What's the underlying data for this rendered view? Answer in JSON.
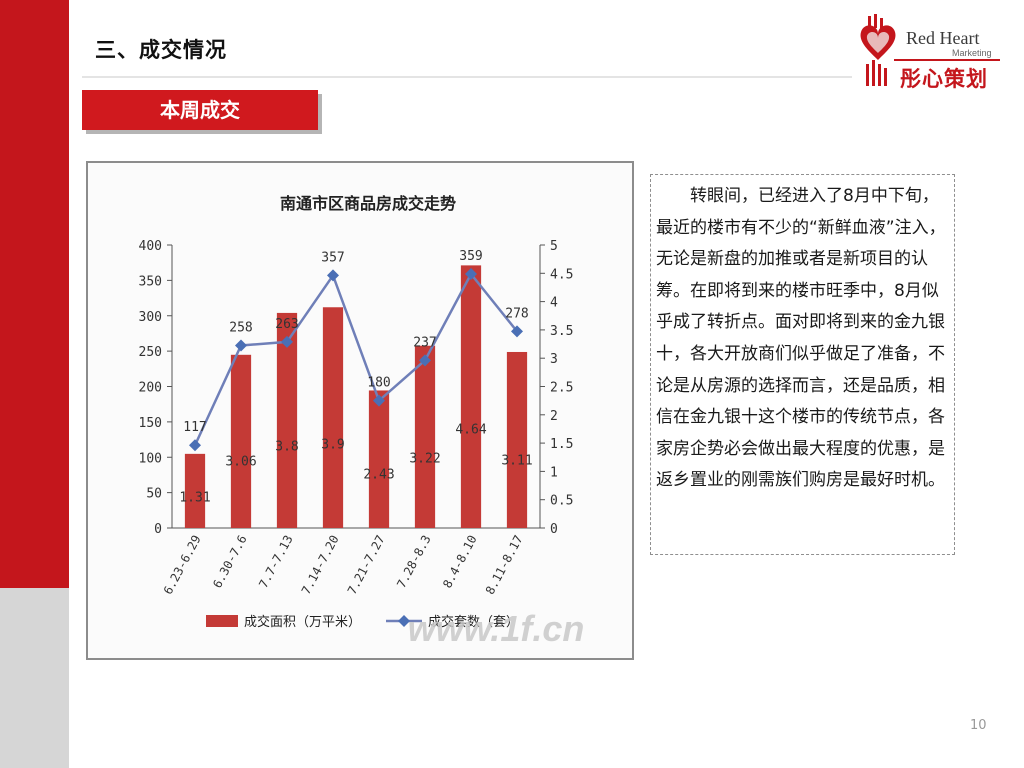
{
  "heading": "三、成交情况",
  "section_tag": "本周成交",
  "logo": {
    "brand_line1": "Red Heart",
    "brand_line2": "Marketing",
    "chinese_name": "彤心策划",
    "colors": {
      "red": "#c4161c",
      "dark_red": "#9a1218"
    }
  },
  "chart_data": {
    "type": "bar",
    "title": "南通市区商品房成交走势",
    "categories": [
      "6.23-6.29",
      "6.30-7.6",
      "7.7-7.13",
      "7.14-7.20",
      "7.21-7.27",
      "7.28-8.3",
      "8.4-8.10",
      "8.11-8.17"
    ],
    "series": [
      {
        "name": "成交面积（万平米）",
        "type": "bar",
        "axis": "right",
        "values": [
          1.31,
          3.06,
          3.8,
          3.9,
          2.43,
          3.22,
          4.64,
          3.11
        ],
        "color": "#c43a36"
      },
      {
        "name": "成交套数（套）",
        "type": "line",
        "axis": "left",
        "values": [
          117,
          258,
          263,
          357,
          180,
          237,
          359,
          278
        ],
        "color": "#6f7fb8"
      }
    ],
    "y_left": {
      "min": 0,
      "max": 400,
      "ticks": [
        "0",
        "50",
        "100",
        "150",
        "200",
        "250",
        "300",
        "350",
        "400"
      ]
    },
    "y_right": {
      "min": 0,
      "max": 5,
      "ticks": [
        "0",
        "0.5",
        "1",
        "1.5",
        "2",
        "2.5",
        "3",
        "3.5",
        "4",
        "4.5",
        "5"
      ]
    },
    "grid": false,
    "legend_position": "bottom",
    "watermark": "www.1f.cn"
  },
  "body_text": "转眼间，已经进入了8月中下旬，最近的楼市有不少的“新鲜血液”注入，无论是新盘的加推或者是新项目的认筹。在即将到来的楼市旺季中，8月似乎成了转折点。面对即将到来的金九银十，各大开放商们似乎做足了准备，不论是从房源的选择而言，还是品质，相信在金九银十这个楼市的传统节点，各家房企势必会做出最大程度的优惠，是返乡置业的刚需族们购房是最好时机。",
  "page_number": "10"
}
